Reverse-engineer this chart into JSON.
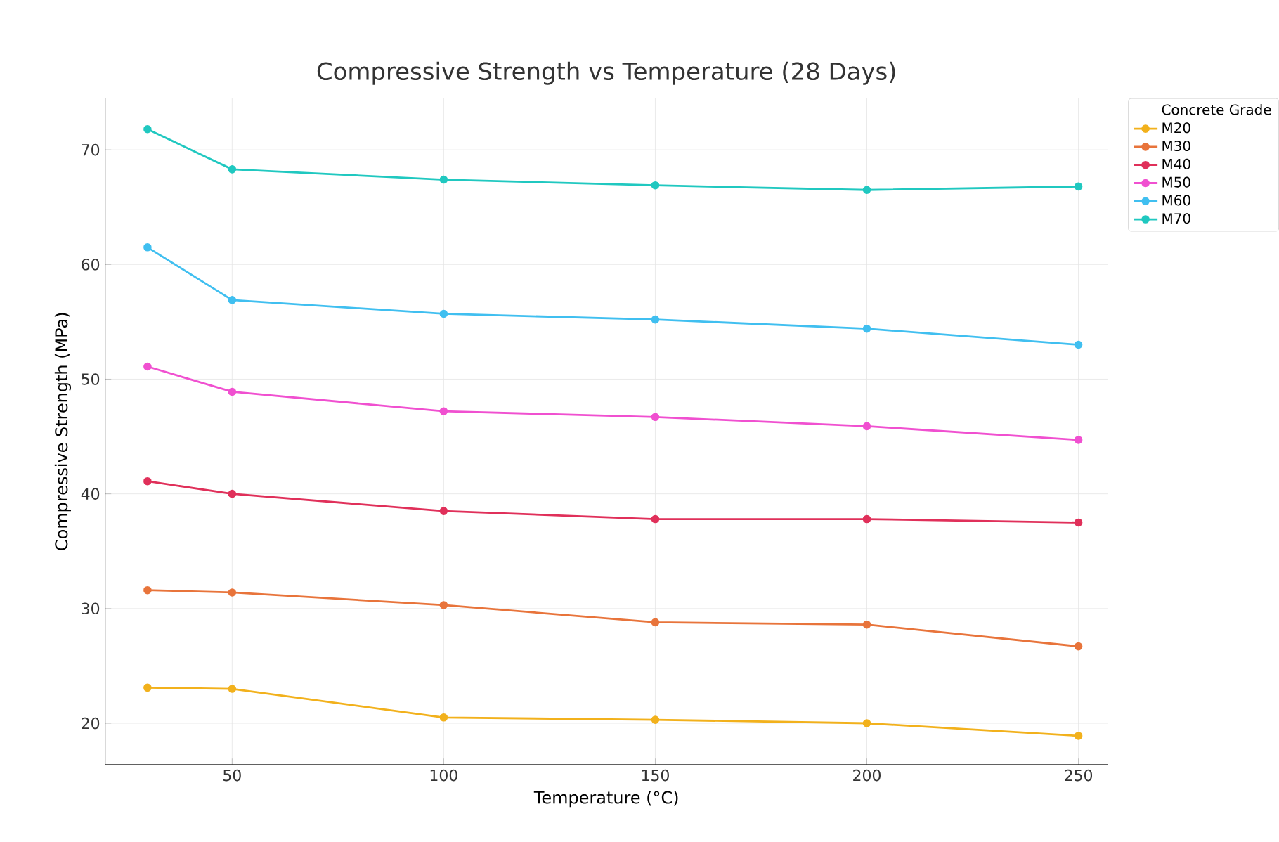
{
  "chart_data": {
    "type": "line",
    "title": "Compressive Strength vs Temperature (28 Days)",
    "xlabel": "Temperature (°C)",
    "ylabel": "Compressive Strength (MPa)",
    "legend_title": "Concrete Grade",
    "x": [
      30,
      50,
      100,
      150,
      200,
      250
    ],
    "xlim": [
      20,
      257
    ],
    "ylim": [
      16.4,
      74.5
    ],
    "xticks": [
      50,
      100,
      150,
      200,
      250
    ],
    "yticks": [
      20,
      30,
      40,
      50,
      60,
      70
    ],
    "grid": true,
    "legend": "right",
    "marker": "circle",
    "line_style": "solid",
    "series": [
      {
        "name": "M20",
        "color": "#f2b11c",
        "values": [
          23.1,
          23.0,
          20.5,
          20.3,
          20.0,
          18.9
        ]
      },
      {
        "name": "M30",
        "color": "#e8743b",
        "values": [
          31.6,
          31.4,
          30.3,
          28.8,
          28.6,
          26.7
        ]
      },
      {
        "name": "M40",
        "color": "#e0305a",
        "values": [
          41.1,
          40.0,
          38.5,
          37.8,
          37.8,
          37.5
        ]
      },
      {
        "name": "M50",
        "color": "#f050d0",
        "values": [
          51.1,
          48.9,
          47.2,
          46.7,
          45.9,
          44.7
        ]
      },
      {
        "name": "M60",
        "color": "#40bff0",
        "values": [
          61.5,
          56.9,
          55.7,
          55.2,
          54.4,
          53.0
        ]
      },
      {
        "name": "M70",
        "color": "#20c8c0",
        "values": [
          71.8,
          68.3,
          67.4,
          66.9,
          66.5,
          66.8
        ]
      }
    ]
  }
}
